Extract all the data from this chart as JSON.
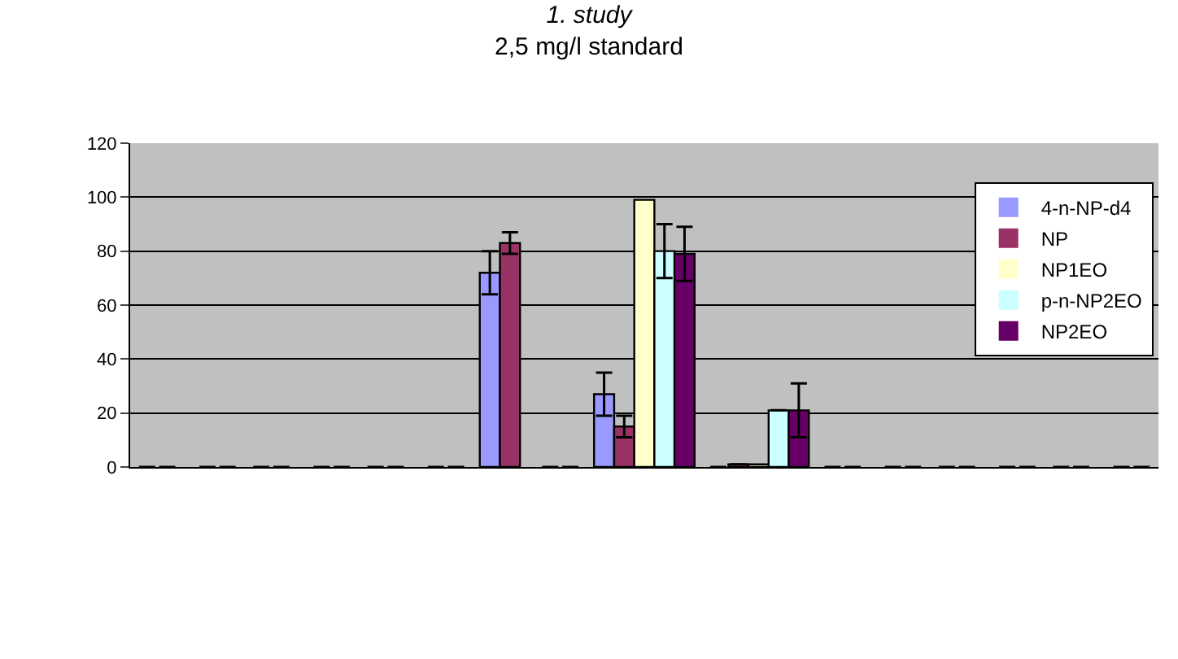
{
  "chart_data": {
    "type": "bar",
    "title": "1. study",
    "subtitle": "2,5 mg/l standard",
    "categories": [
      null,
      null,
      null,
      null,
      null,
      null,
      null,
      null,
      null
    ],
    "series": [
      {
        "name": "4-n-NP-d4",
        "color": "#9999ff",
        "values": [
          0,
          0,
          0,
          72,
          27,
          0,
          0,
          0,
          0
        ],
        "errors": [
          null,
          null,
          null,
          8,
          8,
          null,
          null,
          null,
          null
        ]
      },
      {
        "name": "NP",
        "color": "#993366",
        "values": [
          0,
          0,
          0,
          83,
          15,
          1,
          0,
          0,
          0
        ],
        "errors": [
          null,
          null,
          null,
          4,
          4,
          null,
          null,
          null,
          null
        ]
      },
      {
        "name": "NP1EO",
        "color": "#ffffcc",
        "values": [
          0,
          0,
          0,
          0,
          99,
          1,
          0,
          0,
          0
        ]
      },
      {
        "name": "p-n-NP2EO",
        "color": "#ccffff",
        "values": [
          0,
          0,
          0,
          0,
          80,
          21,
          0,
          0,
          0
        ],
        "errors": [
          null,
          null,
          null,
          null,
          10,
          null,
          null,
          null,
          null
        ]
      },
      {
        "name": "NP2EO",
        "color": "#660066",
        "values": [
          0,
          0,
          0,
          0,
          79,
          21,
          0,
          0,
          0
        ],
        "errors": [
          null,
          null,
          null,
          null,
          10,
          10,
          null,
          null,
          null
        ]
      }
    ],
    "ylim": [
      0,
      120
    ],
    "yticks": [
      0,
      20,
      40,
      60,
      80,
      100,
      120
    ],
    "grid": "y",
    "legend": "right"
  }
}
